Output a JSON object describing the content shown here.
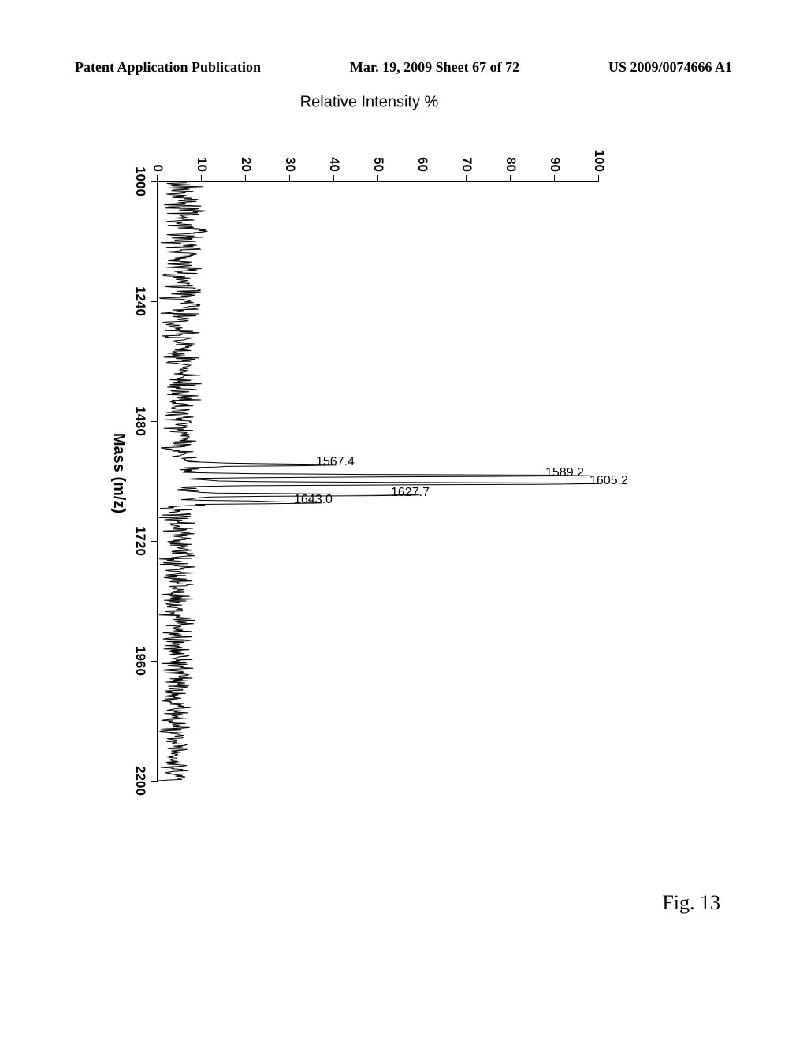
{
  "header": {
    "left": "Patent Application Publication",
    "center": "Mar. 19, 2009  Sheet 67 of 72",
    "right": "US 2009/0074666 A1"
  },
  "chart": {
    "type": "mass-spectrum",
    "x_label": "Mass (m/z)",
    "y_label": "Relative Intensity %",
    "xlim": [
      1000,
      2200
    ],
    "ylim": [
      0,
      100
    ],
    "y_ticks": [
      0,
      10,
      20,
      30,
      40,
      50,
      60,
      70,
      80,
      90,
      100
    ],
    "x_ticks": [
      1000,
      1240,
      1480,
      1720,
      1960,
      2200
    ],
    "peak_labels": [
      {
        "mz": 1567.4,
        "intensity": 38,
        "text": "1567.4"
      },
      {
        "mz": 1589.2,
        "intensity": 90,
        "text": "1589.2"
      },
      {
        "mz": 1605.2,
        "intensity": 100,
        "text": "1605.2"
      },
      {
        "mz": 1627.7,
        "intensity": 55,
        "text": "1627.7"
      },
      {
        "mz": 1643.0,
        "intensity": 33,
        "text": "1643.0"
      }
    ],
    "baseline_noise_level": 8,
    "colors": {
      "line": "#000000",
      "axis": "#000000",
      "background": "#ffffff",
      "text": "#000000"
    },
    "font_sizes": {
      "tick_label": 17,
      "axis_title": 20,
      "peak_label": 16
    }
  },
  "figure_caption": "Fig. 13"
}
